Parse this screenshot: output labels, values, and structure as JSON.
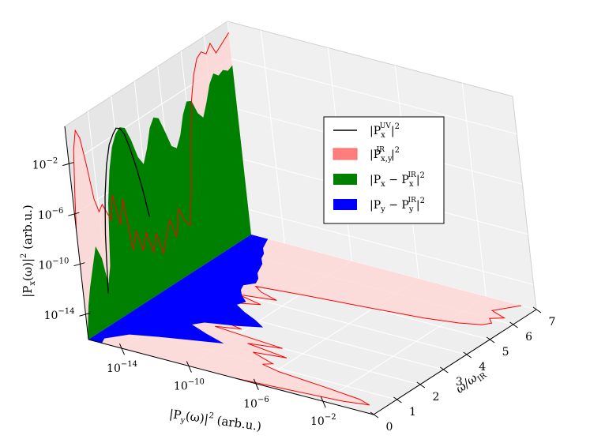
{
  "chart_data": {
    "type": "area",
    "view": "3d",
    "grid": true,
    "legend_position": "upper-right",
    "axes": {
      "x": {
        "label_main": "ω/ω",
        "label_sub": "IR",
        "range": [
          0,
          7
        ],
        "ticks": [
          "0",
          "1",
          "2",
          "3",
          "4",
          "5",
          "6",
          "7"
        ]
      },
      "y": {
        "label_main": "|P",
        "label_sub": "y",
        "label_rest": "(ω)|",
        "label_exp": "2",
        "label_unit": "(arb.u.)",
        "scale": "log",
        "range_exp": [
          -16,
          1
        ],
        "ticks": [
          {
            "base": "10",
            "exp": "−14"
          },
          {
            "base": "10",
            "exp": "−10"
          },
          {
            "base": "10",
            "exp": "−6"
          },
          {
            "base": "10",
            "exp": "−2"
          }
        ]
      },
      "z": {
        "label_main": "|P",
        "label_sub": "x",
        "label_rest": "(ω)|",
        "label_exp": "2",
        "label_unit": "(arb.u.)",
        "scale": "log",
        "range_exp": [
          -16,
          1
        ],
        "ticks": [
          {
            "base": "10",
            "exp": "−14"
          },
          {
            "base": "10",
            "exp": "−10"
          },
          {
            "base": "10",
            "exp": "−6"
          },
          {
            "base": "10",
            "exp": "−2"
          }
        ]
      }
    },
    "series": [
      {
        "name": "|P_x^UV|^2",
        "legend": {
          "main": "|P",
          "sub": "x",
          "sup": "UV",
          "tail": "|",
          "exp": "2"
        },
        "kind": "line",
        "plane": "x-z",
        "color": "#000000",
        "x": [
          1.0,
          1.15,
          1.3,
          1.5,
          1.7,
          1.9,
          2.05,
          2.2,
          2.35,
          2.5,
          2.7,
          2.85,
          3.0
        ],
        "log10": [
          -13.5,
          -9,
          -6.2,
          -3.9,
          -2.5,
          -1.9,
          -1.6,
          -1.8,
          -2.4,
          -3.6,
          -5.6,
          -7.5,
          -9.8
        ]
      },
      {
        "name": "|P_x,y^IR|^2",
        "legend": {
          "main": "|P",
          "sub": "x,y",
          "sup": "IR",
          "tail": "|",
          "exp": "2"
        },
        "kind": "area",
        "plane": "x-z and x-y",
        "color": "#ff0000",
        "fill": "#ffb3b3",
        "x": [
          0.0,
          0.1,
          0.25,
          0.4,
          0.55,
          0.7,
          0.85,
          1.0,
          1.15,
          1.3,
          1.45,
          1.6,
          1.8,
          2.0,
          2.2,
          2.4,
          2.6,
          2.8,
          3.0,
          3.2,
          3.4,
          3.6,
          3.8,
          4.0,
          4.2,
          4.4,
          4.6,
          4.8,
          5.0,
          5.2,
          5.4,
          5.6,
          5.8,
          6.0,
          6.2,
          6.4,
          6.6,
          6.8,
          7.0
        ],
        "log10": [
          -7.2,
          -4.6,
          -1.2,
          0.2,
          -0.6,
          -3.0,
          -5.8,
          -7.0,
          -6.6,
          -7.4,
          -8.2,
          -6.4,
          -9.0,
          -7.2,
          -11.5,
          -10.2,
          -12.0,
          -10.8,
          -12.6,
          -11.4,
          -13.2,
          -12.0,
          -11.0,
          -12.6,
          -10.6,
          -11.8,
          -12.4,
          -9.6,
          -6.2,
          -3.2,
          -1.4,
          -0.3,
          0.0,
          -0.4,
          0.2,
          -0.8,
          -0.5,
          -0.2,
          0.1
        ]
      },
      {
        "name": "|P_x - P_x^IR|^2",
        "legend": {
          "main": "|P",
          "sub": "x",
          "mid": " − P",
          "sub2": "x",
          "sup": "IR",
          "tail": "|",
          "exp": "2"
        },
        "kind": "area",
        "plane": "x-z",
        "color": "#008000",
        "fill": "#008000",
        "x": [
          0.0,
          0.15,
          0.3,
          0.5,
          0.7,
          0.9,
          1.05,
          1.2,
          1.4,
          1.6,
          1.8,
          2.0,
          2.2,
          2.4,
          2.6,
          2.8,
          3.0,
          3.2,
          3.4,
          3.6,
          3.8,
          4.0,
          4.2,
          4.4,
          4.6,
          4.8,
          5.0,
          5.2,
          5.4,
          5.6,
          5.8,
          6.0,
          6.2,
          6.4,
          6.6,
          6.8,
          7.0
        ],
        "log10": [
          -15.5,
          -13.5,
          -12.2,
          -10.8,
          -9.4,
          -10.6,
          -12.8,
          -11.6,
          -6.8,
          -4.4,
          -2.8,
          -2.0,
          -1.7,
          -2.0,
          -3.2,
          -4.8,
          -5.6,
          -4.6,
          -3.2,
          -2.6,
          -2.9,
          -4.2,
          -5.6,
          -6.0,
          -5.2,
          -3.8,
          -3.0,
          -3.2,
          -4.4,
          -5.0,
          -4.0,
          -2.8,
          -2.2,
          -2.6,
          -2.4,
          -2.7,
          -2.5
        ]
      },
      {
        "name": "|P_y - P_y^IR|^2",
        "legend": {
          "main": "|P",
          "sub": "y",
          "mid": " − P",
          "sub2": "y",
          "sup": "IR",
          "tail": "|",
          "exp": "2"
        },
        "kind": "area",
        "plane": "x-y",
        "color": "#0000ff",
        "fill": "#0000ff",
        "x": [
          0.0,
          0.25,
          0.5,
          0.75,
          1.0,
          1.25,
          1.5,
          1.75,
          2.0,
          2.25,
          2.5,
          2.75,
          3.0,
          3.25,
          3.5,
          3.75,
          4.0,
          4.25,
          4.5,
          4.75,
          5.0,
          5.25,
          5.5,
          5.75,
          6.0,
          6.25,
          6.5,
          6.75,
          7.0
        ],
        "log10": [
          -15.2,
          -15.4,
          -15.0,
          -14.6,
          -13.2,
          -11.6,
          -10.0,
          -11.4,
          -12.6,
          -12.2,
          -10.6,
          -9.4,
          -10.2,
          -11.2,
          -12.0,
          -11.8,
          -12.4,
          -12.8,
          -13.0,
          -12.6,
          -12.8,
          -13.2,
          -13.4,
          -13.6,
          -14.0,
          -14.2,
          -14.6,
          -14.8,
          -15.0
        ]
      }
    ]
  }
}
